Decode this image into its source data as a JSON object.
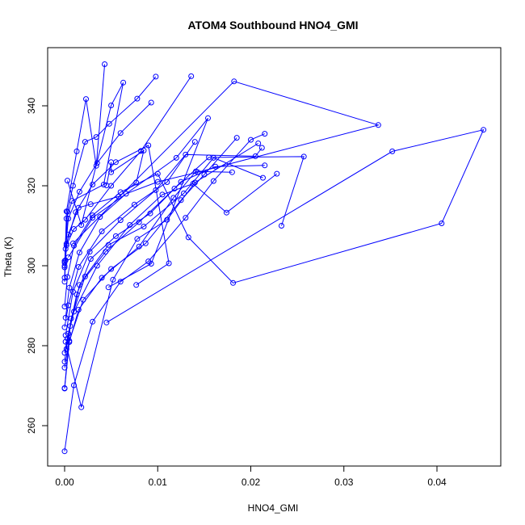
{
  "chart_data": {
    "type": "scatter",
    "title": "ATOM4 Southbound HNO4_GMI",
    "xlabel": "HNO4_GMI",
    "ylabel": "Theta (K)",
    "xlim": [
      0,
      0.046
    ],
    "ylim": [
      250,
      353
    ],
    "xticks": [
      0.0,
      0.01,
      0.02,
      0.03,
      0.04
    ],
    "xtick_labels": [
      "0.00",
      "0.01",
      "0.02",
      "0.03",
      "0.04"
    ],
    "yticks": [
      260,
      280,
      300,
      320,
      340
    ],
    "ytick_labels": [
      "260",
      "280",
      "300",
      "320",
      "340"
    ],
    "grid": false,
    "color": "#0000ff",
    "marker": "open-circle",
    "connected": true,
    "series": [
      {
        "profiles": [
          [
            [
              0.0,
              253.6
            ],
            [
              0.001,
              270.1
            ],
            [
              0.003,
              286.0
            ],
            [
              0.006,
              296.0
            ],
            [
              0.009,
              301.1
            ],
            [
              0.013,
              312.0
            ],
            [
              0.016,
              321.2
            ],
            [
              0.02,
              331.5
            ],
            [
              0.0215,
              333.0
            ]
          ],
          [
            [
              0.0,
              269.3
            ],
            [
              0.0005,
              280.9
            ],
            [
              0.0015,
              289.0
            ],
            [
              0.004,
              297.0
            ],
            [
              0.008,
              304.8
            ],
            [
              0.0117,
              317.0
            ],
            [
              0.0141,
              323.6
            ],
            [
              0.018,
              323.4
            ]
          ],
          [
            [
              0.0,
              274.5
            ],
            [
              0.0005,
              281.2
            ],
            [
              0.002,
              291.5
            ],
            [
              0.005,
              299.2
            ],
            [
              0.0087,
              305.6
            ],
            [
              0.0125,
              316.4
            ],
            [
              0.015,
              322.8
            ],
            [
              0.0185,
              332.0
            ]
          ],
          [
            [
              0.0,
              276.0
            ],
            [
              0.0003,
              281.8
            ],
            [
              0.001,
              288.5
            ],
            [
              0.0035,
              300.0
            ],
            [
              0.007,
              310.2
            ],
            [
              0.0105,
              317.8
            ],
            [
              0.0138,
              320.5
            ],
            [
              0.0174,
              313.3
            ],
            [
              0.0228,
              323.0
            ]
          ],
          [
            [
              0.0,
              278.2
            ],
            [
              0.0004,
              283.0
            ],
            [
              0.0013,
              292.8
            ],
            [
              0.0028,
              301.7
            ],
            [
              0.0055,
              307.4
            ],
            [
              0.0092,
              313.1
            ],
            [
              0.0125,
              321.0
            ],
            [
              0.0162,
              324.8
            ],
            [
              0.0215,
              325.1
            ]
          ],
          [
            [
              0.0,
              269.4
            ],
            [
              0.0006,
              284.9
            ],
            [
              0.0016,
              295.2
            ],
            [
              0.0044,
              303.5
            ],
            [
              0.008,
              310.9
            ],
            [
              0.0118,
              319.3
            ],
            [
              0.0155,
              327.1
            ],
            [
              0.0257,
              327.3
            ],
            [
              0.0233,
              310.0
            ]
          ],
          [
            [
              0.0001,
              281.0
            ],
            [
              0.0018,
              264.6
            ],
            [
              0.0052,
              296.5
            ],
            [
              0.0078,
              306.7
            ],
            [
              0.011,
              311.5
            ],
            [
              0.014,
              320.8
            ],
            [
              0.0208,
              330.6
            ]
          ],
          [
            [
              0.0002,
              279.2
            ],
            [
              0.0007,
              286.8
            ],
            [
              0.0022,
              297.3
            ],
            [
              0.0047,
              305.2
            ],
            [
              0.0085,
              309.8
            ],
            [
              0.0128,
              318.1
            ],
            [
              0.016,
              327.0
            ],
            [
              0.0213,
              322.0
            ]
          ],
          [
            [
              0.0,
              284.6
            ],
            [
              0.0004,
              290.1
            ],
            [
              0.0015,
              299.7
            ],
            [
              0.004,
              308.6
            ],
            [
              0.0075,
              315.3
            ],
            [
              0.011,
              320.9
            ],
            [
              0.014,
              331.0
            ]
          ],
          [
            [
              0.0001,
              282.6
            ],
            [
              0.0009,
              293.5
            ],
            [
              0.0027,
              303.5
            ],
            [
              0.006,
              311.4
            ],
            [
              0.0098,
              318.9
            ],
            [
              0.013,
              327.8
            ],
            [
              0.0205,
              327.4
            ],
            [
              0.0212,
              329.5
            ]
          ],
          [
            [
              0.0,
              289.8
            ],
            [
              0.0003,
              297.2
            ],
            [
              0.001,
              305.0
            ],
            [
              0.003,
              312.6
            ],
            [
              0.006,
              318.4
            ],
            [
              0.01,
              323.0
            ],
            [
              0.0133,
              307.1
            ],
            [
              0.0181,
              295.7
            ],
            [
              0.0405,
              310.6
            ],
            [
              0.045,
              334.0
            ],
            [
              0.0352,
              328.6
            ],
            [
              0.0045,
              285.8
            ]
          ],
          [
            [
              0.0001,
              287.0
            ],
            [
              0.0005,
              294.5
            ],
            [
              0.0016,
              303.3
            ],
            [
              0.0038,
              312.2
            ],
            [
              0.0066,
              318.0
            ],
            [
              0.01,
              321.0
            ],
            [
              0.0143,
              323.4
            ],
            [
              0.0337,
              335.2
            ],
            [
              0.0182,
              346.1
            ],
            [
              0.0009,
              305.6
            ]
          ],
          [
            [
              0.0,
              296.0
            ],
            [
              0.0002,
              305.5
            ],
            [
              0.0012,
              313.4
            ],
            [
              0.003,
              320.3
            ],
            [
              0.0055,
              325.9
            ],
            [
              0.009,
              330.1
            ],
            [
              0.0112,
              300.6
            ],
            [
              0.0077,
              295.2
            ]
          ],
          [
            [
              0.0,
              300.8
            ],
            [
              0.0001,
              304.2
            ],
            [
              0.0004,
              311.8
            ],
            [
              0.0016,
              318.5
            ],
            [
              0.0035,
              325.7
            ],
            [
              0.006,
              333.2
            ],
            [
              0.0093,
              340.8
            ]
          ],
          [
            [
              0.0,
              299.6
            ],
            [
              0.0002,
              305.1
            ],
            [
              0.001,
              309.2
            ],
            [
              0.0022,
              311.5
            ],
            [
              0.005,
              320.0
            ],
            [
              0.0082,
              328.7
            ],
            [
              0.0136,
              347.4
            ]
          ],
          [
            [
              0.0001,
              301.4
            ],
            [
              0.0003,
              313.5
            ],
            [
              0.0009,
              320.0
            ],
            [
              0.0022,
              331.0
            ],
            [
              0.0034,
              332.2
            ],
            [
              0.0048,
              335.5
            ],
            [
              0.0078,
              341.8
            ],
            [
              0.0098,
              347.3
            ]
          ],
          [
            [
              0.0,
              297.0
            ],
            [
              0.0002,
              313.6
            ],
            [
              0.0013,
              328.6
            ],
            [
              0.0023,
              341.7
            ],
            [
              0.0034,
              325.0
            ],
            [
              0.0043,
              350.4
            ]
          ],
          [
            [
              0.0,
              300.0
            ],
            [
              0.0002,
              311.8
            ],
            [
              0.0008,
              316.2
            ],
            [
              0.0042,
              320.3
            ],
            [
              0.0063,
              345.8
            ],
            [
              0.005,
              340.1
            ],
            [
              0.0018,
              310.2
            ],
            [
              0.0003,
              321.3
            ]
          ],
          [
            [
              0.0,
              301.2
            ],
            [
              0.0004,
              307.8
            ],
            [
              0.0015,
              314.5
            ],
            [
              0.0028,
              315.4
            ],
            [
              0.0058,
              317.3
            ],
            [
              0.0077,
              320.8
            ],
            [
              0.0085,
              328.8
            ],
            [
              0.005,
              323.4
            ],
            [
              0.005,
              325.9
            ],
            [
              0.0045,
              320.1
            ]
          ],
          [
            [
              0.0004,
              302.1
            ],
            [
              0.003,
              312.0
            ],
            [
              0.012,
              327.0
            ],
            [
              0.0154,
              336.9
            ],
            [
              0.0093,
              300.5
            ],
            [
              0.0047,
              294.6
            ]
          ]
        ]
      }
    ]
  }
}
